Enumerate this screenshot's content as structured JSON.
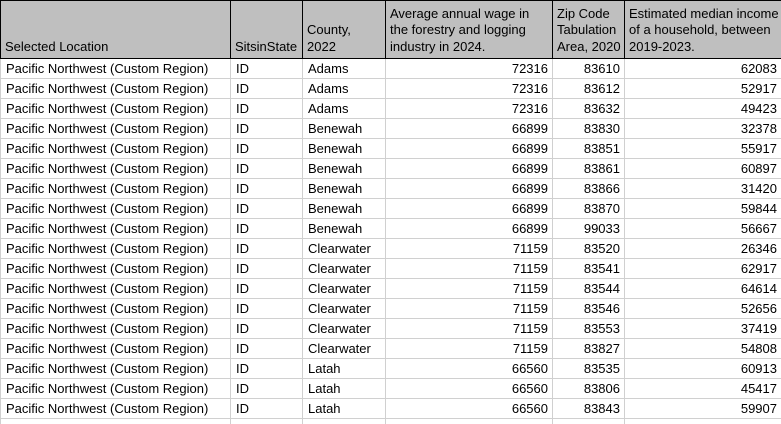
{
  "table": {
    "columns": [
      {
        "label": "Selected Location",
        "align": "left"
      },
      {
        "label": "SitsinState",
        "align": "left"
      },
      {
        "label": "County, 2022",
        "align": "left"
      },
      {
        "label": "Average annual wage in the forestry and logging industry in 2024.",
        "align": "right"
      },
      {
        "label": "Zip Code Tabulation Area, 2020",
        "align": "right"
      },
      {
        "label": "Estimated median income of a household, between 2019-2023.",
        "align": "right"
      }
    ],
    "rows": [
      [
        "Pacific Northwest (Custom Region)",
        "ID",
        "Adams",
        "72316",
        "83610",
        "62083"
      ],
      [
        "Pacific Northwest (Custom Region)",
        "ID",
        "Adams",
        "72316",
        "83612",
        "52917"
      ],
      [
        "Pacific Northwest (Custom Region)",
        "ID",
        "Adams",
        "72316",
        "83632",
        "49423"
      ],
      [
        "Pacific Northwest (Custom Region)",
        "ID",
        "Benewah",
        "66899",
        "83830",
        "32378"
      ],
      [
        "Pacific Northwest (Custom Region)",
        "ID",
        "Benewah",
        "66899",
        "83851",
        "55917"
      ],
      [
        "Pacific Northwest (Custom Region)",
        "ID",
        "Benewah",
        "66899",
        "83861",
        "60897"
      ],
      [
        "Pacific Northwest (Custom Region)",
        "ID",
        "Benewah",
        "66899",
        "83866",
        "31420"
      ],
      [
        "Pacific Northwest (Custom Region)",
        "ID",
        "Benewah",
        "66899",
        "83870",
        "59844"
      ],
      [
        "Pacific Northwest (Custom Region)",
        "ID",
        "Benewah",
        "66899",
        "99033",
        "56667"
      ],
      [
        "Pacific Northwest (Custom Region)",
        "ID",
        "Clearwater",
        "71159",
        "83520",
        "26346"
      ],
      [
        "Pacific Northwest (Custom Region)",
        "ID",
        "Clearwater",
        "71159",
        "83541",
        "62917"
      ],
      [
        "Pacific Northwest (Custom Region)",
        "ID",
        "Clearwater",
        "71159",
        "83544",
        "64614"
      ],
      [
        "Pacific Northwest (Custom Region)",
        "ID",
        "Clearwater",
        "71159",
        "83546",
        "52656"
      ],
      [
        "Pacific Northwest (Custom Region)",
        "ID",
        "Clearwater",
        "71159",
        "83553",
        "37419"
      ],
      [
        "Pacific Northwest (Custom Region)",
        "ID",
        "Clearwater",
        "71159",
        "83827",
        "54808"
      ],
      [
        "Pacific Northwest (Custom Region)",
        "ID",
        "Latah",
        "66560",
        "83535",
        "60913"
      ],
      [
        "Pacific Northwest (Custom Region)",
        "ID",
        "Latah",
        "66560",
        "83806",
        "45417"
      ],
      [
        "Pacific Northwest (Custom Region)",
        "ID",
        "Latah",
        "66560",
        "83843",
        "59907"
      ],
      [
        "",
        "",
        "",
        "",
        "",
        ""
      ]
    ],
    "colors": {
      "header_bg": "#bfbfbf",
      "header_border": "#000000",
      "gridline": "#d0d0d0",
      "cell_bg": "#ffffff",
      "text": "#000000"
    }
  }
}
